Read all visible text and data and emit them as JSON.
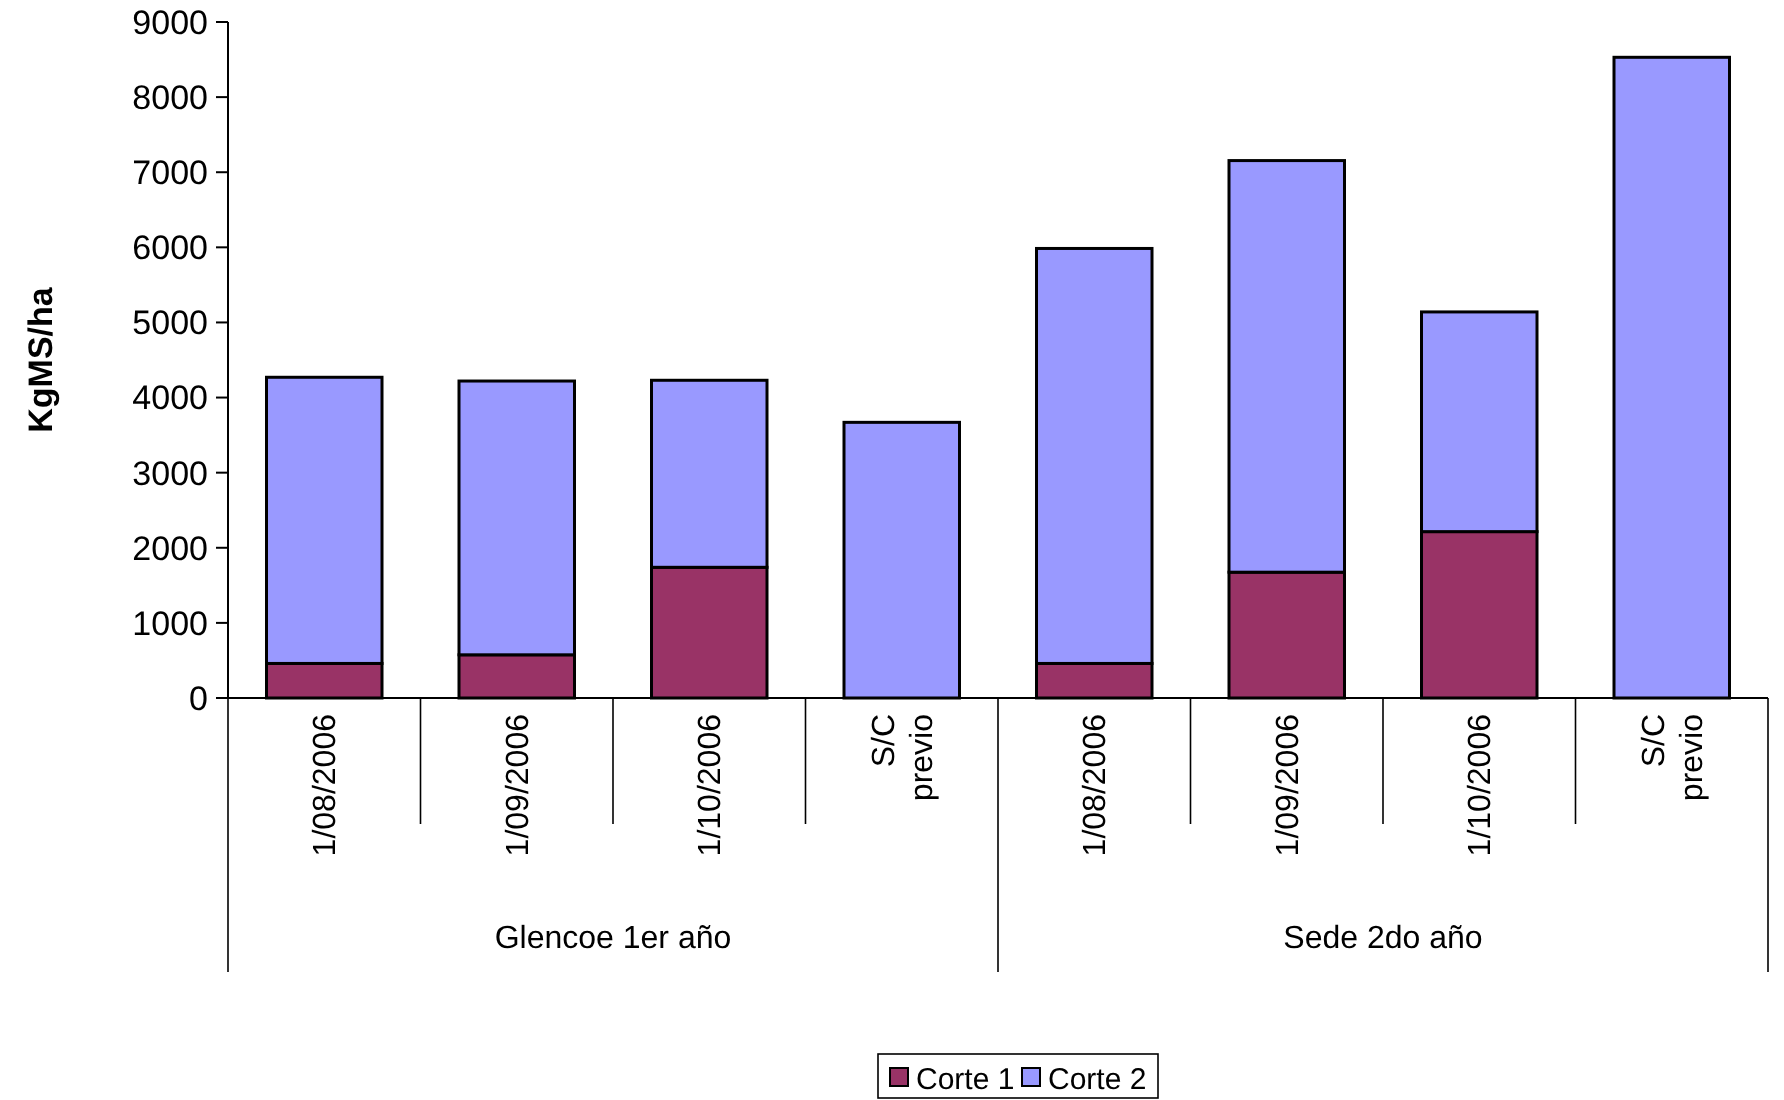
{
  "chart_data": {
    "type": "bar",
    "stacked": true,
    "ylabel": "KgMS/ha",
    "categories": [
      "1/08/2006",
      "1/09/2006",
      "1/10/2006",
      "S/C previo",
      "1/08/2006",
      "1/09/2006",
      "1/10/2006",
      "S/C previo"
    ],
    "series": [
      {
        "name": "Corte 1",
        "color": "#993366",
        "values": [
          460,
          575,
          1740,
          0,
          460,
          1675,
          2215,
          0
        ]
      },
      {
        "name": "Corte 2",
        "color": "#9999ff",
        "values": [
          3810,
          3645,
          2490,
          3670,
          5525,
          5480,
          2925,
          8530
        ]
      }
    ],
    "annotations": [
      "Glencoe 1er año",
      "Sede 2do año"
    ],
    "ylim": [
      0,
      9000
    ],
    "yticks": [
      0,
      1000,
      2000,
      3000,
      4000,
      5000,
      6000,
      7000,
      8000,
      9000
    ],
    "legend": "bottom"
  }
}
